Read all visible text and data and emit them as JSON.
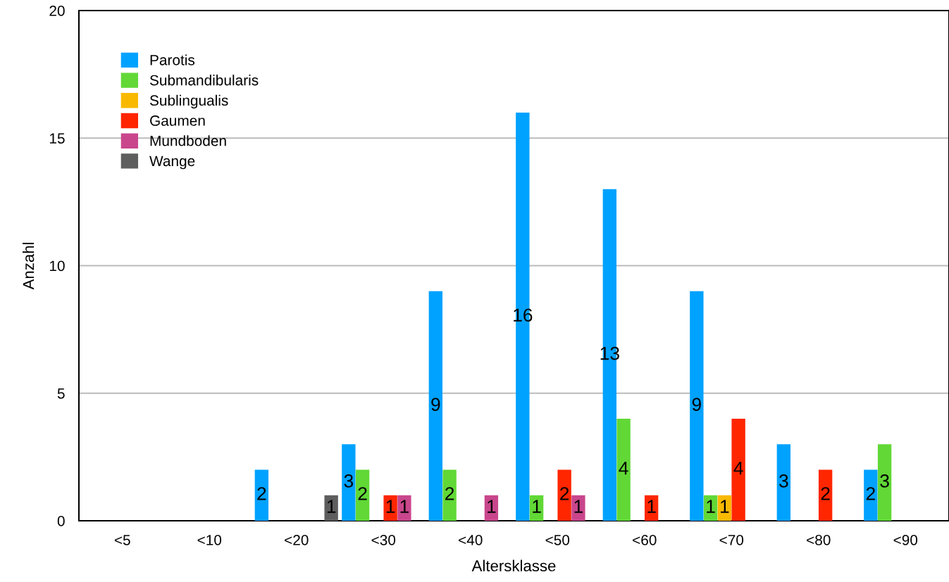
{
  "chart_data": {
    "type": "bar",
    "xlabel": "Altersklasse",
    "ylabel": "Anzahl",
    "categories": [
      "<5",
      "<10",
      "<20",
      "<30",
      "<40",
      "<50",
      "<60",
      "<70",
      "<80",
      "<90"
    ],
    "series": [
      {
        "name": "Parotis",
        "color": "#00a2ff",
        "values": [
          null,
          null,
          2,
          3,
          9,
          16,
          13,
          9,
          3,
          2
        ]
      },
      {
        "name": "Submandibularis",
        "color": "#61d836",
        "values": [
          null,
          null,
          null,
          2,
          2,
          1,
          4,
          1,
          null,
          3
        ]
      },
      {
        "name": "Sublingualis",
        "color": "#fab901",
        "values": [
          null,
          null,
          null,
          null,
          null,
          null,
          null,
          1,
          null,
          null
        ]
      },
      {
        "name": "Gaumen",
        "color": "#ff2600",
        "values": [
          null,
          null,
          null,
          1,
          null,
          2,
          1,
          4,
          2,
          null
        ]
      },
      {
        "name": "Mundboden",
        "color": "#c9468c",
        "values": [
          null,
          null,
          null,
          1,
          1,
          1,
          null,
          null,
          null,
          null
        ]
      },
      {
        "name": "Wange",
        "color": "#5e5e5e",
        "values": [
          null,
          null,
          1,
          null,
          null,
          null,
          null,
          null,
          null,
          null
        ]
      }
    ],
    "ylim": [
      0,
      20
    ],
    "yticks": [
      0,
      5,
      10,
      15,
      20
    ],
    "grid": "y",
    "legend": "top left",
    "data_labels": true
  }
}
